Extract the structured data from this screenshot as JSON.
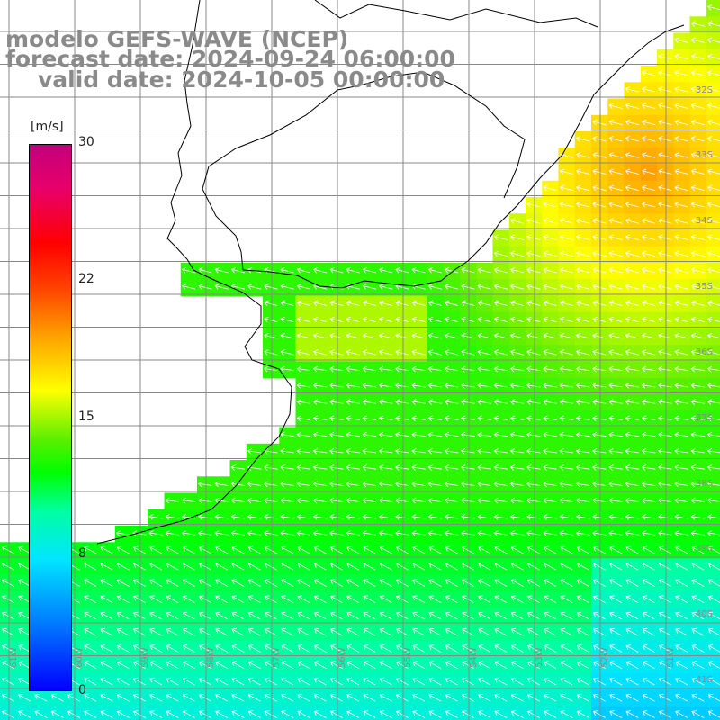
{
  "title": {
    "line1": "modelo GEFS-WAVE (NCEP)",
    "line2": "forecast date: 2024-09-24 06:00:00",
    "line3": "valid date: 2024-10-05 00:00:00"
  },
  "colorbar": {
    "unit": "[m/s]",
    "ticks": [
      "30",
      "22",
      "15",
      "8",
      "0"
    ],
    "range": [
      0,
      30
    ]
  },
  "lat_labels": [
    "32S",
    "33S",
    "34S",
    "35S",
    "36S",
    "37S",
    "38S",
    "39S",
    "40S",
    "41S"
  ],
  "lon_labels": [
    "61W",
    "60W",
    "59W",
    "58W",
    "57W",
    "56W",
    "55W",
    "54W",
    "53W",
    "52W",
    "51W"
  ],
  "colors": {
    "land": "#ffffff",
    "grid": "#888888",
    "coast": "#000000",
    "arrows": "#ffffff",
    "text": "#8a8a8a"
  }
}
